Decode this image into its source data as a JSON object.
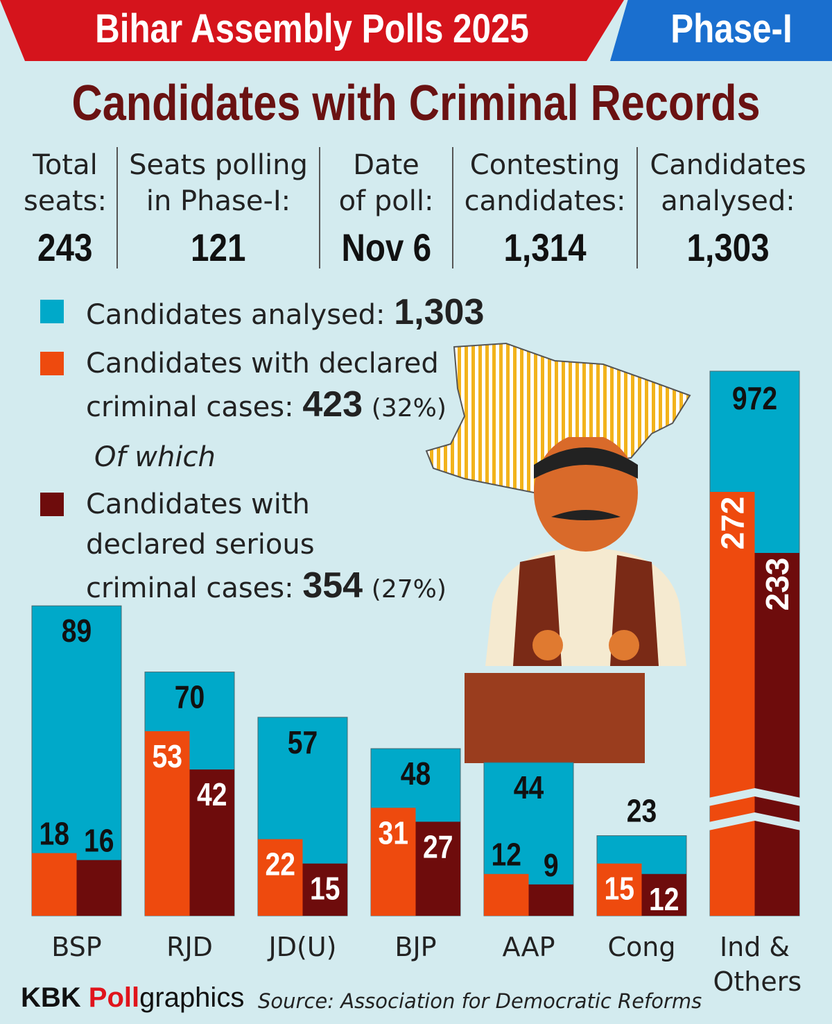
{
  "header": {
    "title": "Bihar Assembly Polls 2025",
    "phase": "Phase-I",
    "subtitle": "Candidates with Criminal Records"
  },
  "stats": [
    {
      "label1": "Total",
      "label2": "seats:",
      "value": "243"
    },
    {
      "label1": "Seats polling",
      "label2": "in Phase-I:",
      "value": "121"
    },
    {
      "label1": "Date",
      "label2": "of poll:",
      "value": "Nov 6"
    },
    {
      "label1": "Contesting",
      "label2": "candidates:",
      "value": "1,314"
    },
    {
      "label1": "Candidates",
      "label2": "analysed:",
      "value": "1,303"
    }
  ],
  "legend": {
    "analysed_label": "Candidates analysed:",
    "analysed_value": "1,303",
    "criminal_label1": "Candidates with declared",
    "criminal_label2": "criminal cases:",
    "criminal_value": "423",
    "criminal_pct": "(32%)",
    "of_which": "Of which",
    "serious_label1": "Candidates with",
    "serious_label2": "declared serious",
    "serious_label3": "criminal cases:",
    "serious_value": "354",
    "serious_pct": "(27%)"
  },
  "colors": {
    "analysed": "#00a9c9",
    "criminal": "#ee4a0e",
    "serious": "#6e0c0c"
  },
  "chart_data": {
    "type": "bar",
    "categories": [
      "BSP",
      "RJD",
      "JD(U)",
      "BJP",
      "AAP",
      "Cong",
      "Ind & Others"
    ],
    "series": [
      {
        "name": "Candidates analysed",
        "values": [
          89,
          70,
          57,
          48,
          44,
          23,
          972
        ]
      },
      {
        "name": "Candidates with declared criminal cases",
        "values": [
          18,
          53,
          22,
          31,
          12,
          15,
          272
        ]
      },
      {
        "name": "Candidates with declared serious criminal cases",
        "values": [
          16,
          42,
          15,
          27,
          9,
          12,
          233
        ]
      }
    ],
    "broken_axis_category": "Ind & Others"
  },
  "footer": {
    "brand_a": "KBK ",
    "brand_b": "Poll",
    "brand_c": "graphics",
    "source": "Source: Association for Democratic Reforms"
  }
}
